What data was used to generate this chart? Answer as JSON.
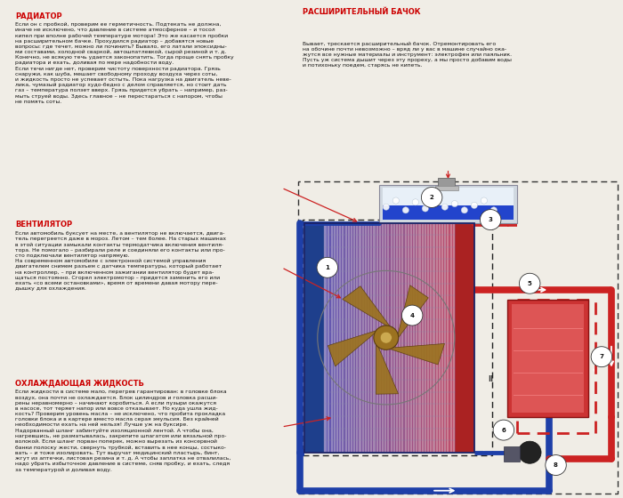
{
  "bg_color": "#f0ede6",
  "panel_color": "#ffffff",
  "title_color": "#cc0000",
  "text_color": "#111111",
  "sections_left": [
    {
      "title": "РАДИАТОР",
      "body": "Если он с пробкой, проверим ее герметичность. Подтекать не должна,\nиначе не исключено, что давление в системе атмосферное – и тосол\nкипел при вполне рабочей температуре мотора! Это же касается пробки\nна расширительном бачке. Прохудился радиатор – добавятся новые\nвопросы: где течет, можно ли починить? Бывало, его латали эпоксидны-\nми составами, холодной сваркой, автошпатлевкой, сырой резиной и т. д.\nКонечно, не всякую течь удается законопатить. Тогда проще снять пробку\nрадиатора и ехать, доливая по мере надобности воду.\nЕсли течи нигде нет, проверим чистоту поверхности радиатора. Грязь\nснаружи, как шуба, мешает свободному проходу воздуха через соты,\nи жидкость просто не успевает остыть. Пока нагрузка на двигатель неве-\nлика, чумазый радиатор худо-бедно с делом справляется, но стоит дать\nгаз – температура ползет вверх. Грязь придется убрать – например, раз-\nмыть струей воды. Здесь главное – не перестараться с напором, чтобы\nне помять соты."
    },
    {
      "title": "ВЕНТИЛЯТОР",
      "body": "Если автомобиль буксует на месте, а вентилятор не включается, двига-\nтель перегреется даже в мороз. Летом – тем более. На старых машинах\nв этой ситуации замыкали контакты термодатчика включения вентиля-\nтора. Не помогало – разбирали реле и соединяли его контакты или про-\nсто подключали вентилятор напрямую.\nНа современном автомобиле с электронной системой управления\nдвигателем снимем разъем с датчика температуры, который работает\nна контроллер, – при включенном зажигании вентилятор будет вра-\nщаться постоянно. Сгорел электромотор – придется заменить его или\nехать «со всеми остановками», время от времени давая мотору пере-\nдышку для охлаждения."
    },
    {
      "title": "ОХЛАЖДАЮЩАЯ ЖИДКОСТЬ",
      "body": "Если жидкости в системе мало, перегрев гарантирован: в головке блока\nвоздух, она почти не охлаждается. Блок цилиндров и головка расши-\nрены неравномерно – начинают коробиться. А если пузыри окажутся\nв насосе, тот теряет напор или вовсе отказывает. Но куда ушла жид-\nкость? Проверим уровень масла – не исключено, что пробита прокладка\nголовки блока и в картере вместо масла серая эмульсия. Без крайней\nнеобходимости ехать на ней нельзя! Лучше уж на буксире.\nНадорванный шланг забинтуйте изоляционной лентой. А чтобы она,\nнагревшись, не разматывалась, закрепите шпагатом или вязальной про-\nволокой. Если шланг порван поперек, можно вырезать из консервной\nбанки полоску жести, свернуть трубкой, вставить в нее концы, состыко-\nвать – и тоже изолировать. Тут выручат медицинский пластырь, бинт,\nжгут из аптечки, листовая резина и т. д. А чтобы заплатка не отвалилась,\nнадо убрать избыточное давление в системе, сняв пробку, и ехать, следя\nза температурой и доливая воду."
    }
  ],
  "right_title": "РАСШИРИТЕЛЬНЫЙ БАЧОК",
  "right_body": "Бывает, трескается расширительный бачок. Отремонтировать его\nна обочине почти невозможно – вряд ли у вас в машине случайно ока-\nжутся все нужные материалы и инструмент: электрофен или паяльник.\nПусть уж система дышит через эту прореху, а мы просто добавим воды\nи потихоньку поедем, старясь не кипеть."
}
